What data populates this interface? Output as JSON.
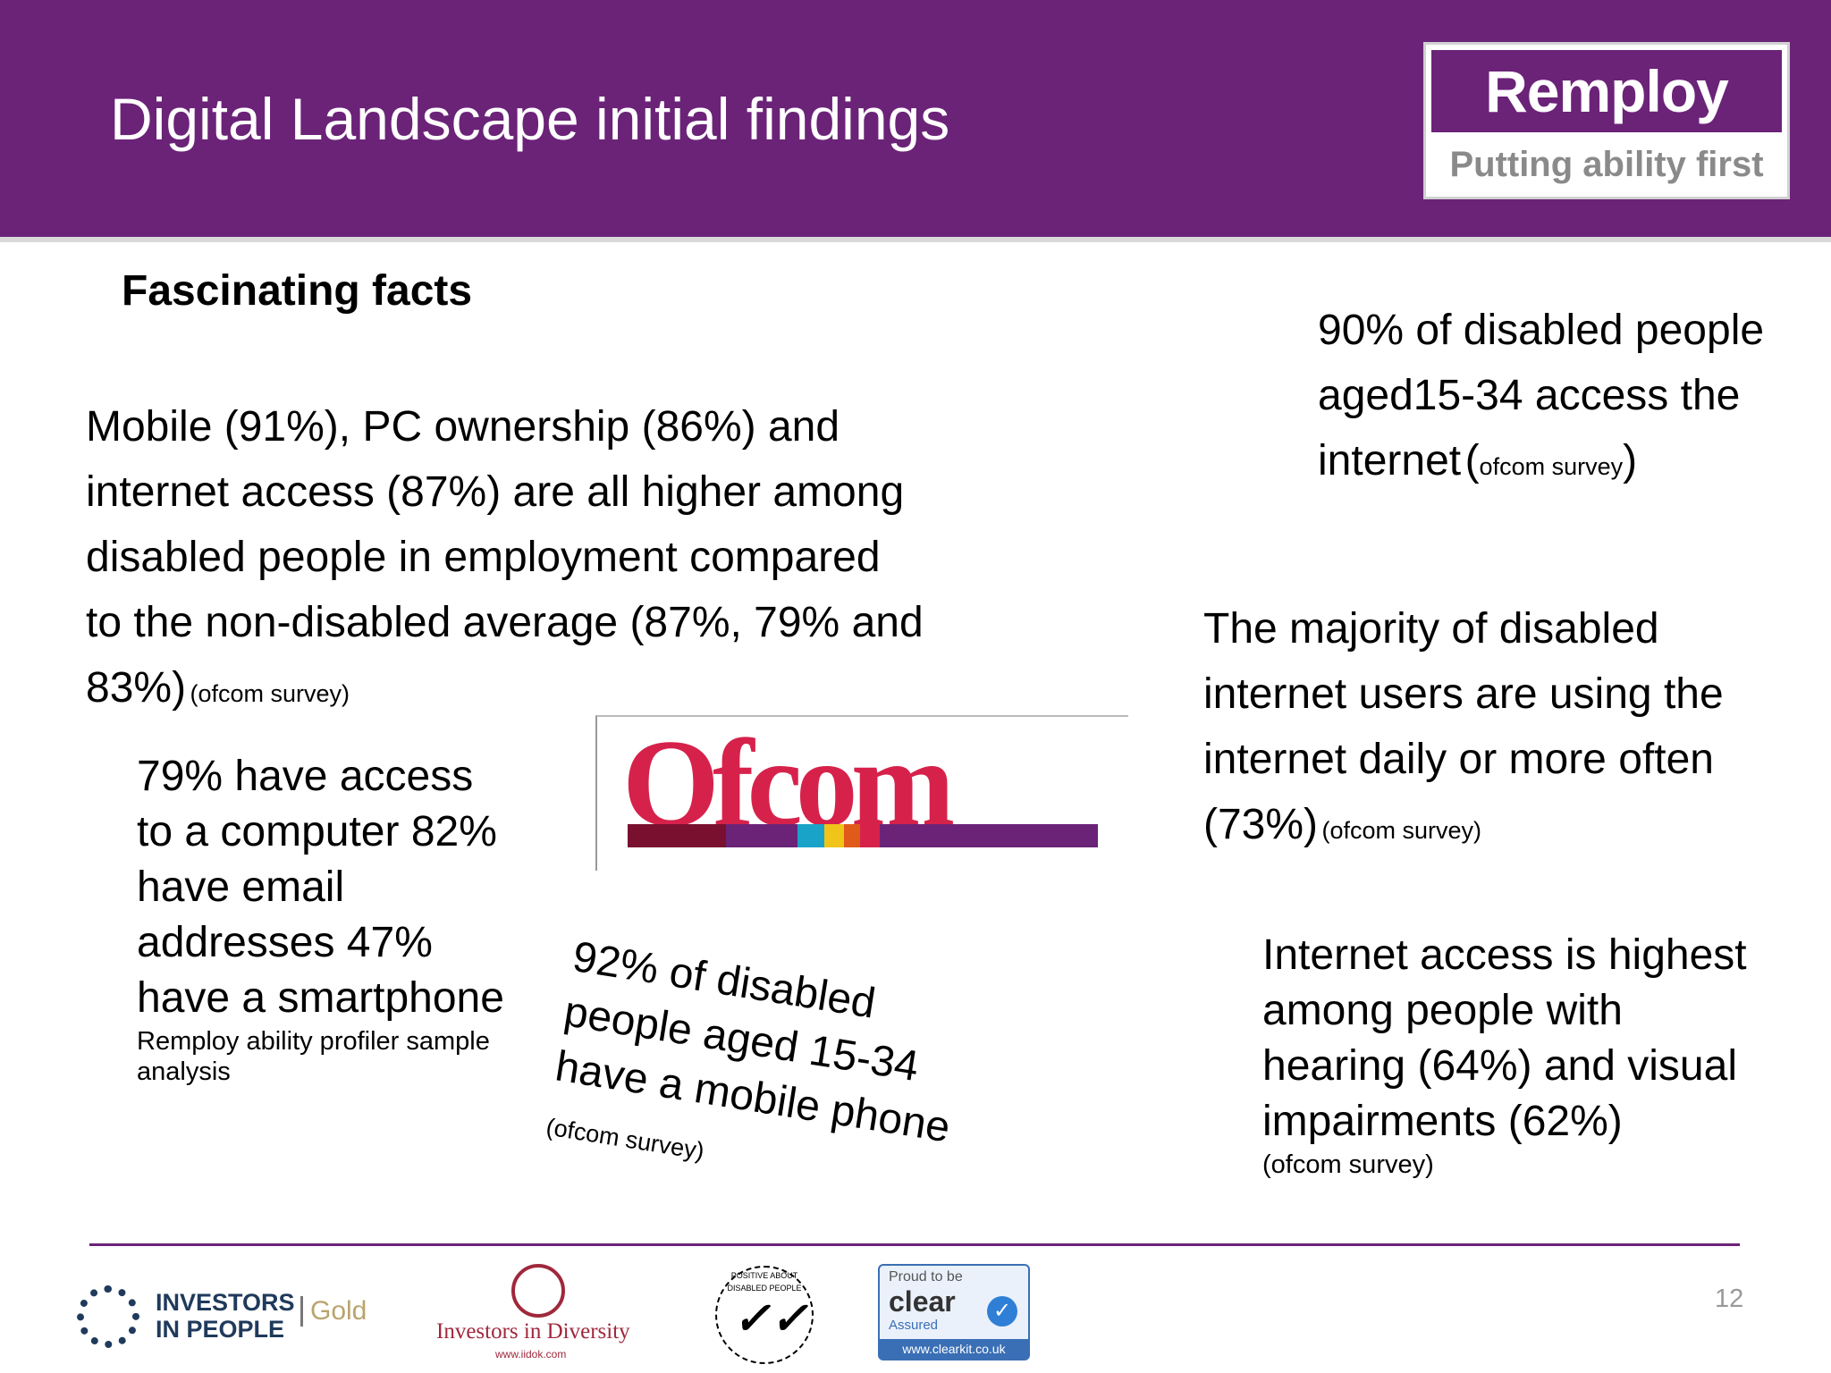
{
  "header": {
    "title": "Digital Landscape initial findings",
    "logo": {
      "name": "Remploy",
      "tagline": "Putting ability first"
    }
  },
  "subheading": "Fascinating facts",
  "facts": {
    "ownership": {
      "main": "Mobile (91%), PC ownership (86%) and internet access (87%) are all higher among disabled people in employment compared to the non-disabled average (87%, 79% and 83%)",
      "source": "(ofcom survey)"
    },
    "aged_internet": {
      "main": "90% of disabled people aged15-34 access the internet",
      "paren_open": "(",
      "source": "ofcom survey",
      "paren_close": ")"
    },
    "daily_use": {
      "main": "The majority of disabled internet users are using the internet daily or more often (73%)",
      "source": "(ofcom survey)"
    },
    "profiler": {
      "main": "79% have access to a computer 82% have email addresses 47% have a smartphone",
      "source": "Remploy ability profiler sample analysis"
    },
    "mobile": {
      "main": "92% of disabled people aged 15-34 have a mobile phone",
      "source": "(ofcom survey)"
    },
    "impairments": {
      "main": "Internet access is highest among people with hearing (64%) and visual impairments (62%)",
      "source": "(ofcom survey)"
    }
  },
  "ofcom_logo": {
    "text": "Ofcom",
    "stripe_colors": [
      "#7a1030",
      "#6b2378",
      "#1aa3c8",
      "#f0c419",
      "#e05a1a",
      "#d6224b",
      "#6b2378"
    ]
  },
  "footer": {
    "logos": {
      "iip": {
        "text": "INVESTORS IN PEOPLE",
        "level": "Gold"
      },
      "iid": {
        "text": "Investors in Diversity",
        "url": "www.iidok.com"
      },
      "pad": {
        "text": "POSITIVE ABOUT DISABLED PEOPLE"
      },
      "clear": {
        "proud": "Proud to be",
        "brand": "clear",
        "assured": "Assured",
        "url": "www.clearkit.co.uk"
      }
    },
    "page_number": "12"
  },
  "colors": {
    "brand_purple": "#6b2378",
    "ofcom_red": "#d6224b"
  }
}
